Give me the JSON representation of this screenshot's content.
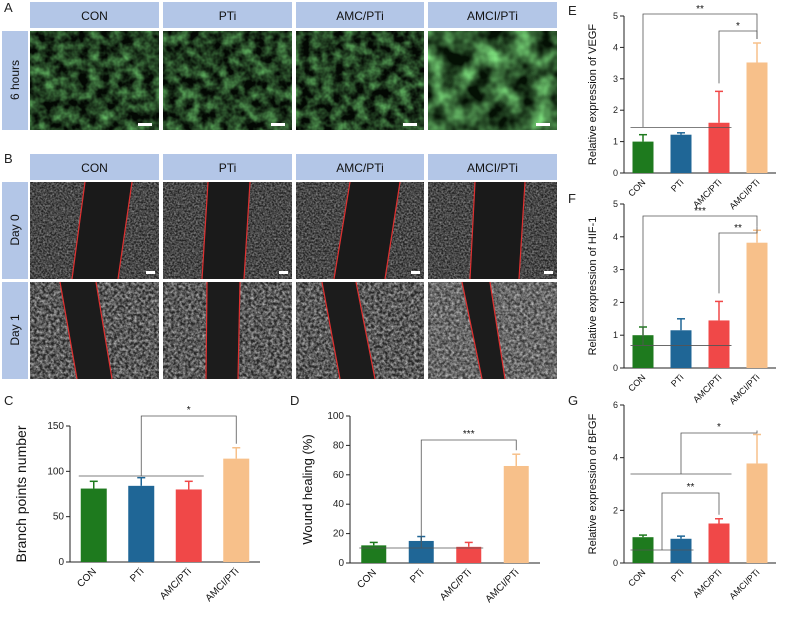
{
  "panel_letters": {
    "A": "A",
    "B": "B",
    "C": "C",
    "D": "D",
    "E": "E",
    "F": "F",
    "G": "G"
  },
  "micrograph_panels": {
    "column_headers": [
      "CON",
      "PTi",
      "AMC/PTi",
      "AMCI/PTi"
    ],
    "tube_row_label": "6 hours",
    "migration_row_labels": [
      "Day 0",
      "Day 1"
    ]
  },
  "colors": {
    "CON": "#1e7a1e",
    "PTi": "#1f6696",
    "AMC/PTi": "#f04848",
    "AMCI/PTi": "#f7c08a",
    "header_bg": "#b3c6e7",
    "fluorescence": "#3cd43c",
    "scratch_line": "#e03030"
  },
  "chart_data": [
    {
      "id": "C",
      "type": "bar",
      "categories": [
        "CON",
        "PTi",
        "AMC/PTi",
        "AMCI/PTi"
      ],
      "values": [
        81,
        84,
        80,
        114
      ],
      "errors": [
        8,
        9,
        9,
        12
      ],
      "ylabel": "Branch points number",
      "ylim": [
        0,
        150
      ],
      "yticks": [
        0,
        50,
        100,
        150
      ],
      "significance": [
        {
          "label": "*",
          "from": "CON-AMC/PTi group",
          "to": "AMCI/PTi"
        }
      ]
    },
    {
      "id": "D",
      "type": "bar",
      "categories": [
        "CON",
        "PTi",
        "AMC/PTi",
        "AMCI/PTi"
      ],
      "values": [
        12,
        15,
        11,
        66
      ],
      "errors": [
        2,
        3,
        3,
        8
      ],
      "ylabel": "Wound healing (%)",
      "ylim": [
        0,
        100
      ],
      "yticks": [
        0,
        20,
        40,
        60,
        80,
        100
      ],
      "significance": [
        {
          "label": "***",
          "from": "CON-AMC/PTi group",
          "to": "AMCI/PTi"
        }
      ]
    },
    {
      "id": "E",
      "type": "bar",
      "categories": [
        "CON",
        "PTi",
        "AMC/PTi",
        "AMCI/PTi"
      ],
      "values": [
        1.0,
        1.22,
        1.6,
        3.52
      ],
      "errors": [
        0.22,
        0.06,
        1.0,
        0.62
      ],
      "ylabel": "Relative expression of VEGF",
      "ylim": [
        0,
        5
      ],
      "yticks": [
        0,
        1,
        2,
        3,
        4,
        5
      ],
      "significance": [
        {
          "label": "**",
          "from": "CON",
          "to": "AMCI/PTi"
        },
        {
          "label": "*",
          "from": "AMC/PTi",
          "to": "AMCI/PTi"
        }
      ]
    },
    {
      "id": "F",
      "type": "bar",
      "categories": [
        "CON",
        "PTi",
        "AMC/PTi",
        "AMCI/PTi"
      ],
      "values": [
        1.0,
        1.15,
        1.45,
        3.82
      ],
      "errors": [
        0.25,
        0.35,
        0.58,
        0.38
      ],
      "ylabel": "Relative expression of HIF-1",
      "ylim": [
        0,
        5
      ],
      "yticks": [
        0,
        1,
        2,
        3,
        4,
        5
      ],
      "significance": [
        {
          "label": "***",
          "from": "CON",
          "to": "AMCI/PTi"
        },
        {
          "label": "**",
          "from": "AMC/PTi",
          "to": "AMCI/PTi"
        }
      ]
    },
    {
      "id": "G",
      "type": "bar",
      "categories": [
        "CON",
        "PTi",
        "AMC/PTi",
        "AMCI/PTi"
      ],
      "values": [
        0.98,
        0.92,
        1.5,
        3.78
      ],
      "errors": [
        0.08,
        0.1,
        0.18,
        1.1
      ],
      "ylabel": "Relative expression of BFGF",
      "ylim": [
        0,
        6
      ],
      "yticks": [
        0,
        2,
        4,
        6
      ],
      "significance": [
        {
          "label": "*",
          "from": "CON-AMC/PTi group",
          "to": "AMCI/PTi"
        },
        {
          "label": "**",
          "from": "CON-PTi group",
          "to": "AMC/PTi"
        }
      ]
    }
  ]
}
